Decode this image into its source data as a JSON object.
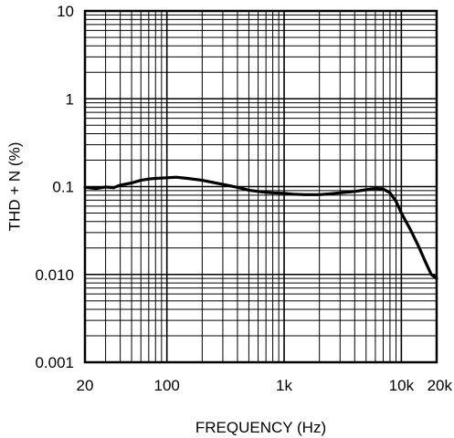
{
  "chart_data": {
    "type": "line",
    "title": "",
    "xlabel": "FREQUENCY (Hz)",
    "ylabel": "THD + N (%)",
    "x_scale": "log",
    "y_scale": "log",
    "xlim": [
      20,
      20000
    ],
    "ylim": [
      0.001,
      10
    ],
    "grid": true,
    "legend": "none",
    "x_ticks": [
      20,
      100,
      1000,
      10000,
      20000
    ],
    "x_tick_labels": [
      "20",
      "100",
      "1k",
      "10k",
      "20k"
    ],
    "y_ticks": [
      10,
      1,
      0.1,
      0.01,
      0.001
    ],
    "y_tick_labels": [
      "10",
      "1",
      "0.1",
      "0.010",
      "0.001"
    ],
    "series": [
      {
        "color": "#000000",
        "x": [
          20,
          25,
          30,
          35,
          40,
          50,
          60,
          70,
          80,
          100,
          120,
          150,
          200,
          250,
          300,
          400,
          500,
          600,
          700,
          800,
          1000,
          1200,
          1500,
          2000,
          2500,
          3000,
          4000,
          5000,
          6000,
          7000,
          8000,
          9000,
          10000,
          12000,
          14000,
          16000,
          18000,
          20000
        ],
        "y": [
          0.098,
          0.095,
          0.099,
          0.097,
          0.104,
          0.11,
          0.118,
          0.122,
          0.124,
          0.126,
          0.128,
          0.124,
          0.118,
          0.111,
          0.106,
          0.098,
          0.091,
          0.088,
          0.086,
          0.085,
          0.084,
          0.082,
          0.081,
          0.081,
          0.083,
          0.085,
          0.088,
          0.092,
          0.095,
          0.094,
          0.085,
          0.068,
          0.05,
          0.032,
          0.021,
          0.014,
          0.01,
          0.009
        ]
      }
    ]
  }
}
